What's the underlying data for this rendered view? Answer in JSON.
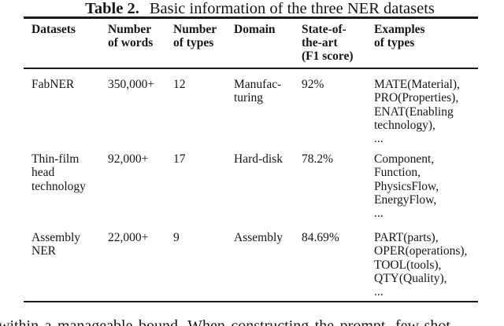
{
  "colors": {
    "text": "#161616",
    "rule": "#1a1a1a",
    "background": "#ffffff"
  },
  "title": {
    "label": "Table 2.",
    "caption": "Basic information of the three NER datasets"
  },
  "table": {
    "headers": [
      "Datasets",
      "Number\nof words",
      "Number\nof types",
      "Domain",
      "State-of-\nthe-art\n(F1 score)",
      "Examples\nof types"
    ],
    "rows": [
      {
        "dataset": "FabNER",
        "words": "350,000+",
        "types": "12",
        "domain": "Manufac-\nturing",
        "sota": "92%",
        "examples": "MATE(Material),\nPRO(Properties),\nENAT(Enabling\ntechnology),\n..."
      },
      {
        "dataset": "Thin-film\nhead\ntechnology",
        "words": "92,000+",
        "types": "17",
        "domain": "Hard-disk",
        "sota": "78.2%",
        "examples": "Component,\nFunction,\nPhysicsFlow,\nEnergyFlow,\n..."
      },
      {
        "dataset": "Assembly\nNER",
        "words": "22,000+",
        "types": "9",
        "domain": "Assembly",
        "sota": "84.69%",
        "examples": "PART(parts),\nOPER(operations),\nTOOL(tools),\nQTY(Quality),\n..."
      }
    ]
  },
  "body_text": "within a manageable bound. When constructing the prompt, few-shot"
}
